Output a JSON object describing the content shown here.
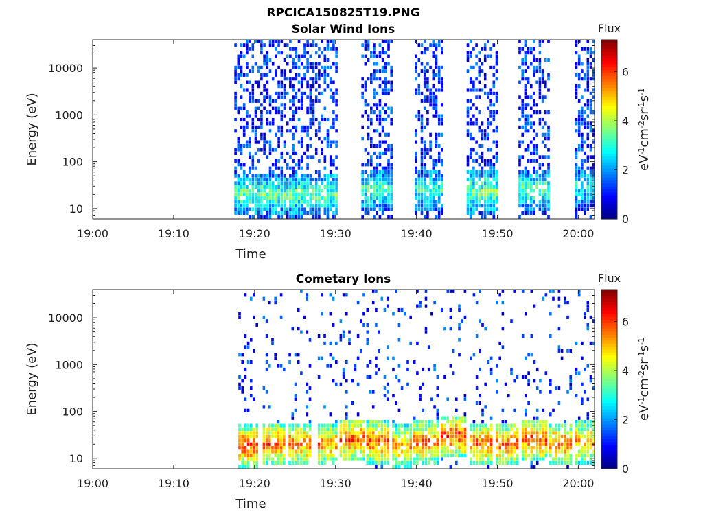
{
  "figure_title": "RPCICA150825T19.PNG",
  "chart_data": [
    {
      "type": "heatmap",
      "title": "Solar Wind Ions",
      "xlabel": "Time",
      "ylabel": "Energy (eV)",
      "yscale": "log",
      "ylim": [
        6,
        40000
      ],
      "xlim": [
        "19:00",
        "20:02"
      ],
      "xticks": [
        "19:00",
        "19:10",
        "19:20",
        "19:30",
        "19:40",
        "19:50",
        "20:00"
      ],
      "yticks": [
        "10",
        "100",
        "1000",
        "10000"
      ],
      "colorbar": {
        "title": "Flux",
        "label": "eV-1cm-2sr-1s-1",
        "range": [
          0,
          7.3
        ],
        "ticks": [
          "0",
          "2",
          "4",
          "6"
        ],
        "colormap": "jet"
      },
      "grid": false,
      "bursts": [
        {
          "start": "19:17.5",
          "end": "19:30.2",
          "peak_flux": 4.2,
          "peak_energy": 20
        },
        {
          "start": "19:33.2",
          "end": "19:36.8",
          "peak_flux": 4.0,
          "peak_energy": 25
        },
        {
          "start": "19:39.8",
          "end": "19:43.3",
          "peak_flux": 3.8,
          "peak_energy": 25
        },
        {
          "start": "19:46.2",
          "end": "19:49.8",
          "peak_flux": 4.3,
          "peak_energy": 22
        },
        {
          "start": "19:52.6",
          "end": "19:56.2",
          "peak_flux": 4.1,
          "peak_energy": 25
        },
        {
          "start": "19:59.6",
          "end": "20:02",
          "peak_flux": 3.6,
          "peak_energy": 30
        }
      ]
    },
    {
      "type": "heatmap",
      "title": "Cometary Ions",
      "xlabel": "Time",
      "ylabel": "Energy (eV)",
      "yscale": "log",
      "ylim": [
        6,
        40000
      ],
      "xlim": [
        "19:00",
        "20:02"
      ],
      "xticks": [
        "19:00",
        "19:10",
        "19:20",
        "19:30",
        "19:40",
        "19:50",
        "20:00"
      ],
      "yticks": [
        "10",
        "100",
        "1000",
        "10000"
      ],
      "colorbar": {
        "title": "Flux",
        "label": "eV-1cm-2sr-1s-1",
        "range": [
          0,
          7.3
        ],
        "ticks": [
          "0",
          "2",
          "4",
          "6"
        ],
        "colormap": "jet"
      },
      "grid": false,
      "bursts": [
        {
          "start": "19:18.0",
          "end": "19:20.2",
          "peak_flux": 6.8,
          "peak_energy": 18
        },
        {
          "start": "19:21.0",
          "end": "19:23.8",
          "peak_flux": 6.6,
          "peak_energy": 20
        },
        {
          "start": "19:24.2",
          "end": "19:27.0",
          "peak_flux": 6.5,
          "peak_energy": 20
        },
        {
          "start": "19:27.8",
          "end": "19:30.0",
          "peak_flux": 6.2,
          "peak_energy": 20
        },
        {
          "start": "19:30.5",
          "end": "19:33.4",
          "peak_flux": 6.7,
          "peak_energy": 25
        },
        {
          "start": "19:33.8",
          "end": "19:36.6",
          "peak_flux": 6.6,
          "peak_energy": 22
        },
        {
          "start": "19:37.0",
          "end": "19:39.2",
          "peak_flux": 6.3,
          "peak_energy": 18
        },
        {
          "start": "19:39.6",
          "end": "19:42.6",
          "peak_flux": 6.5,
          "peak_energy": 22
        },
        {
          "start": "19:43.0",
          "end": "19:46.2",
          "peak_flux": 6.9,
          "peak_energy": 30
        },
        {
          "start": "19:46.6",
          "end": "19:49.4",
          "peak_flux": 6.6,
          "peak_energy": 20
        },
        {
          "start": "19:49.8",
          "end": "19:52.6",
          "peak_flux": 6.5,
          "peak_energy": 20
        },
        {
          "start": "19:53.0",
          "end": "19:56.0",
          "peak_flux": 6.7,
          "peak_energy": 25
        },
        {
          "start": "19:56.4",
          "end": "19:59.2",
          "peak_flux": 6.5,
          "peak_energy": 20
        },
        {
          "start": "19:59.6",
          "end": "20:02",
          "peak_flux": 6.2,
          "peak_energy": 22
        }
      ]
    }
  ]
}
